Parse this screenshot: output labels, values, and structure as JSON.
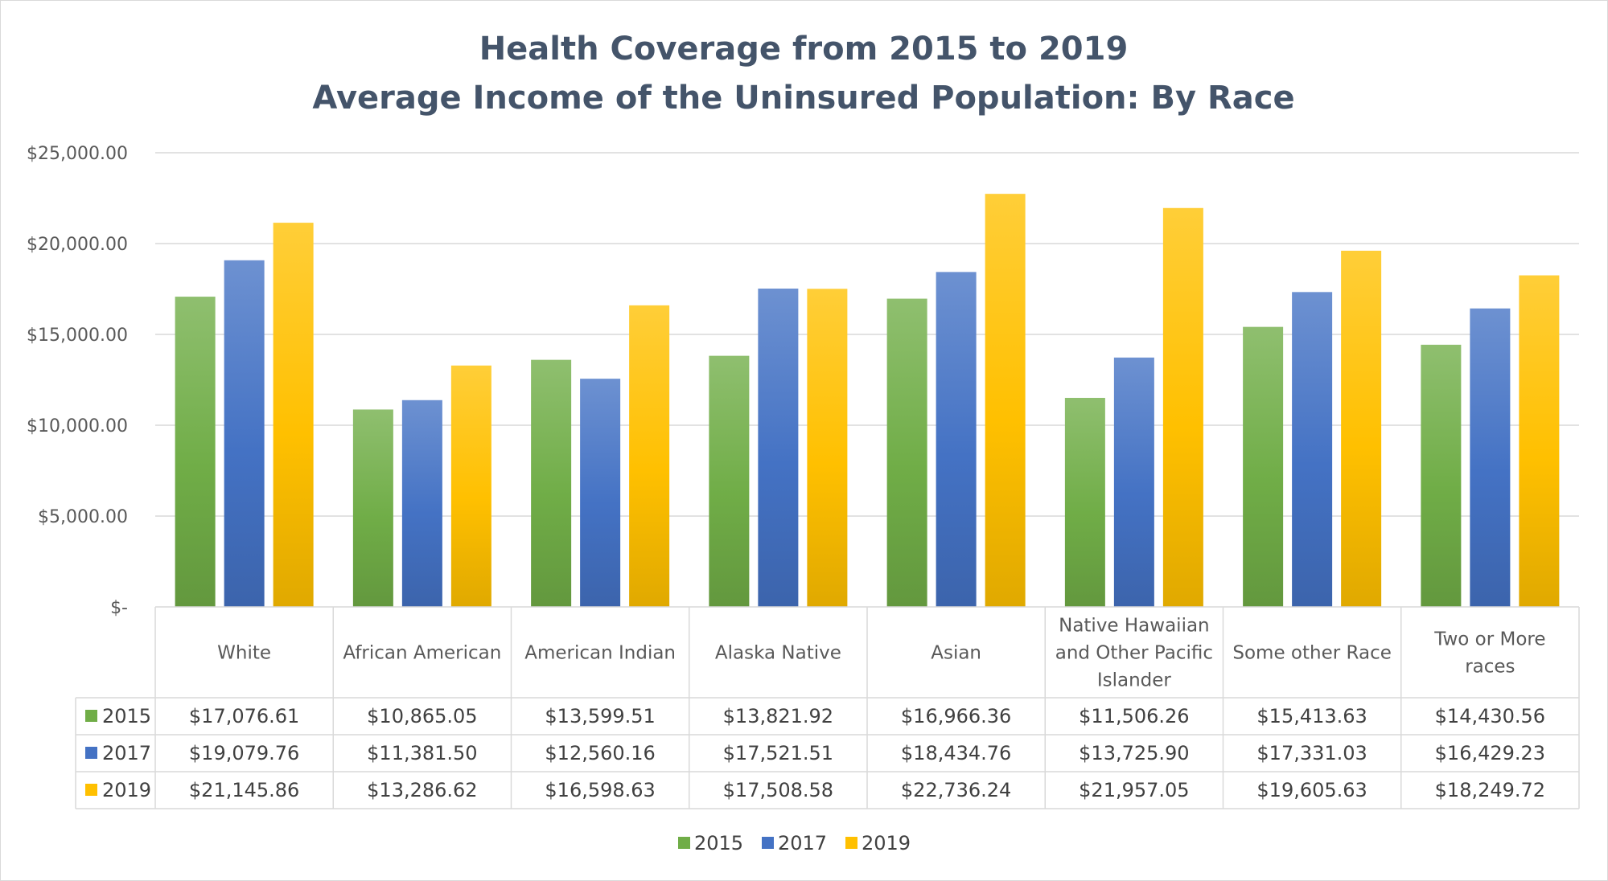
{
  "chart_data": {
    "type": "bar",
    "title": "Health Coverage from 2015 to 2019",
    "subtitle": "Average Income of the Uninsured Population: By Race",
    "categories": [
      [
        "White"
      ],
      [
        "African American"
      ],
      [
        "American Indian"
      ],
      [
        "Alaska Native"
      ],
      [
        "Asian"
      ],
      [
        "Native Hawaiian",
        "and Other Pacific",
        "Islander"
      ],
      [
        "Some other Race"
      ],
      [
        "Two or More",
        "races"
      ]
    ],
    "series": [
      {
        "name": "2015",
        "color": "#70ad47",
        "values": [
          17076.61,
          10865.05,
          13599.51,
          13821.92,
          16966.36,
          11506.26,
          15413.63,
          14430.56
        ],
        "labels": [
          "$17,076.61",
          "$10,865.05",
          "$13,599.51",
          "$13,821.92",
          "$16,966.36",
          "$11,506.26",
          "$15,413.63",
          "$14,430.56"
        ]
      },
      {
        "name": "2017",
        "color": "#4472c4",
        "values": [
          19079.76,
          11381.5,
          12560.16,
          17521.51,
          18434.76,
          13725.9,
          17331.03,
          16429.23
        ],
        "labels": [
          "$19,079.76",
          "$11,381.50",
          "$12,560.16",
          "$17,521.51",
          "$18,434.76",
          "$13,725.90",
          "$17,331.03",
          "$16,429.23"
        ]
      },
      {
        "name": "2019",
        "color": "#ffc000",
        "values": [
          21145.86,
          13286.62,
          16598.63,
          17508.58,
          22736.24,
          21957.05,
          19605.63,
          18249.72
        ],
        "labels": [
          "$21,145.86",
          "$13,286.62",
          "$16,598.63",
          "$17,508.58",
          "$22,736.24",
          "$21,957.05",
          "$19,605.63",
          "$18,249.72"
        ]
      }
    ],
    "ylim": [
      0,
      25000
    ],
    "yticks": [
      {
        "value": 0,
        "label": "$-"
      },
      {
        "value": 5000,
        "label": "$5,000.00"
      },
      {
        "value": 10000,
        "label": "$10,000.00"
      },
      {
        "value": 15000,
        "label": "$15,000.00"
      },
      {
        "value": 20000,
        "label": "$20,000.00"
      },
      {
        "value": 25000,
        "label": "$25,000.00"
      }
    ],
    "grid": true,
    "data_table": true,
    "legend_position": "bottom"
  }
}
